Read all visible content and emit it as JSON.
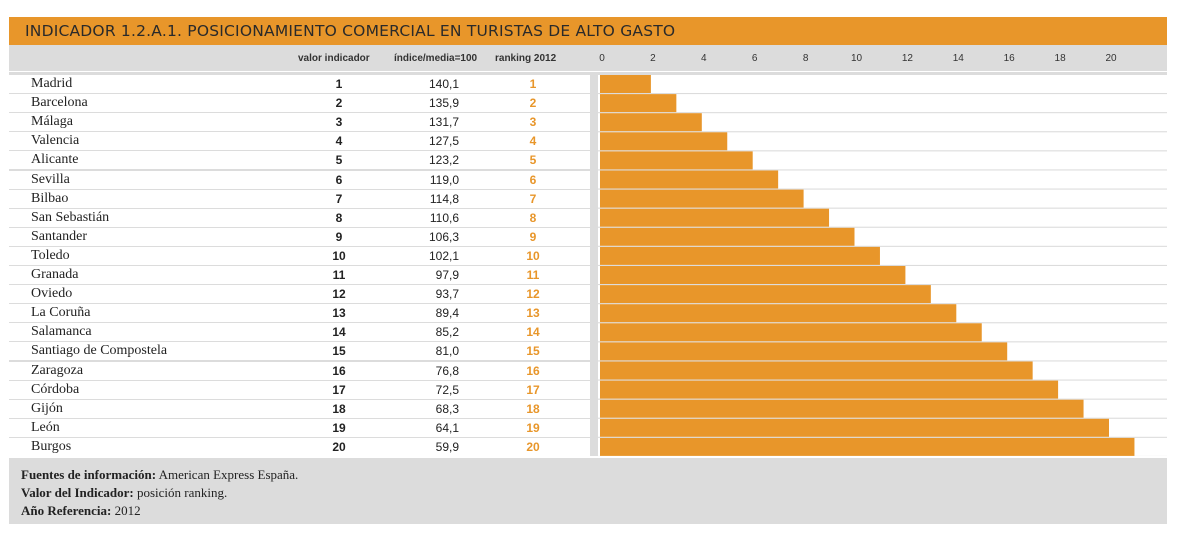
{
  "title": "INDICADOR 1.2.A.1. POSICIONAMIENTO COMERCIAL EN TURISTAS DE ALTO GASTO",
  "headers": {
    "valor": "valor indicador",
    "indice": "índice/media=100",
    "ranking": "ranking 2012"
  },
  "ticks": [
    "0",
    "2",
    "4",
    "6",
    "8",
    "10",
    "12",
    "14",
    "16",
    "18",
    "20"
  ],
  "rows": [
    {
      "city": "Madrid",
      "valor": "1",
      "indice": "140,1",
      "ranking": "1"
    },
    {
      "city": "Barcelona",
      "valor": "2",
      "indice": "135,9",
      "ranking": "2"
    },
    {
      "city": "Málaga",
      "valor": "3",
      "indice": "131,7",
      "ranking": "3"
    },
    {
      "city": "Valencia",
      "valor": "4",
      "indice": "127,5",
      "ranking": "4"
    },
    {
      "city": "Alicante",
      "valor": "5",
      "indice": "123,2",
      "ranking": "5"
    },
    {
      "city": "Sevilla",
      "valor": "6",
      "indice": "119,0",
      "ranking": "6"
    },
    {
      "city": "Bilbao",
      "valor": "7",
      "indice": "114,8",
      "ranking": "7"
    },
    {
      "city": "San Sebastián",
      "valor": "8",
      "indice": "110,6",
      "ranking": "8"
    },
    {
      "city": "Santander",
      "valor": "9",
      "indice": "106,3",
      "ranking": "9"
    },
    {
      "city": "Toledo",
      "valor": "10",
      "indice": "102,1",
      "ranking": "10"
    },
    {
      "city": "Granada",
      "valor": "11",
      "indice": "97,9",
      "ranking": "11"
    },
    {
      "city": "Oviedo",
      "valor": "12",
      "indice": "93,7",
      "ranking": "12"
    },
    {
      "city": "La Coruña",
      "valor": "13",
      "indice": "89,4",
      "ranking": "13"
    },
    {
      "city": "Salamanca",
      "valor": "14",
      "indice": "85,2",
      "ranking": "14"
    },
    {
      "city": "Santiago de Compostela",
      "valor": "15",
      "indice": "81,0",
      "ranking": "15"
    },
    {
      "city": "Zaragoza",
      "valor": "16",
      "indice": "76,8",
      "ranking": "16"
    },
    {
      "city": "Córdoba",
      "valor": "17",
      "indice": "72,5",
      "ranking": "17"
    },
    {
      "city": "Gijón",
      "valor": "18",
      "indice": "68,3",
      "ranking": "18"
    },
    {
      "city": "León",
      "valor": "19",
      "indice": "64,1",
      "ranking": "19"
    },
    {
      "city": "Burgos",
      "valor": "20",
      "indice": "59,9",
      "ranking": "20"
    }
  ],
  "footer": {
    "source_label": "Fuentes de información:",
    "source_value": "American Express España.",
    "indicator_label": "Valor del Indicador:",
    "indicator_value": "posición ranking.",
    "year_label": "Año Referencia:",
    "year_value": "2012"
  },
  "colors": {
    "accent": "#e8962a",
    "panel_gray": "#dcdcdc"
  },
  "chart_data": {
    "type": "bar",
    "orientation": "horizontal",
    "title": "INDICADOR 1.2.A.1. POSICIONAMIENTO COMERCIAL EN TURISTAS DE ALTO GASTO",
    "categories": [
      "Madrid",
      "Barcelona",
      "Málaga",
      "Valencia",
      "Alicante",
      "Sevilla",
      "Bilbao",
      "San Sebastián",
      "Santander",
      "Toledo",
      "Granada",
      "Oviedo",
      "La Coruña",
      "Salamanca",
      "Santiago de Compostela",
      "Zaragoza",
      "Córdoba",
      "Gijón",
      "León",
      "Burgos"
    ],
    "values": [
      1,
      2,
      3,
      4,
      5,
      6,
      7,
      8,
      9,
      10,
      11,
      12,
      13,
      14,
      15,
      16,
      17,
      18,
      19,
      20
    ],
    "xlim": [
      0,
      22
    ],
    "xticks": [
      0,
      2,
      4,
      6,
      8,
      10,
      12,
      14,
      16,
      18,
      20
    ],
    "grid": false,
    "legend": "none",
    "bar_color": "#e8962a"
  }
}
